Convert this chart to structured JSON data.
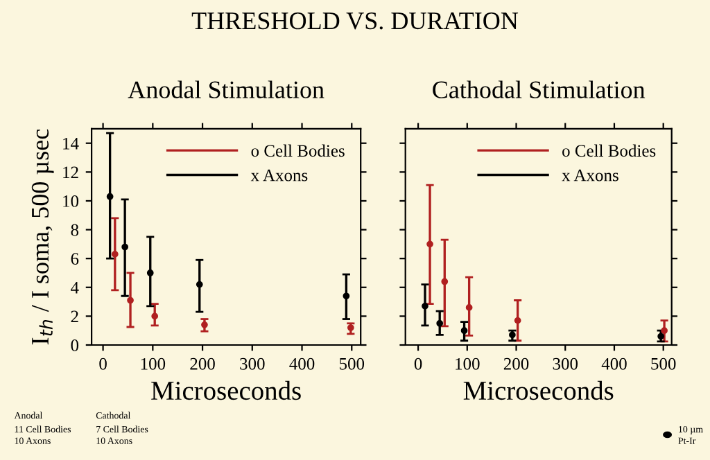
{
  "chart_data": [
    {
      "type": "scatter",
      "title": "Anodal Stimulation",
      "xlabel": "Microseconds",
      "ylabel": "I$_{th}$ / I soma, 500 µsec",
      "marker": "circle",
      "legend": "top right",
      "grid": false,
      "xlim": [
        -23,
        518
      ],
      "xticks": [
        0,
        100,
        200,
        300,
        400,
        500
      ],
      "ylim": [
        0,
        15
      ],
      "yticks": [
        0,
        2,
        4,
        6,
        8,
        10,
        12,
        14
      ],
      "annotations": [
        "THRESHOLD VS. DURATION",
        "Anodal",
        "11 Cell Bodies",
        "10 Axons"
      ],
      "series": [
        {
          "name": "o Cell Bodies",
          "color": "#b02020",
          "x": [
            24,
            55,
            104,
            204,
            498
          ],
          "values": [
            6.3,
            3.1,
            2.0,
            1.4,
            1.2
          ],
          "errors": [
            [
              3.8,
              8.8
            ],
            [
              1.25,
              5.0
            ],
            [
              1.35,
              2.85
            ],
            [
              0.95,
              1.8
            ],
            [
              0.77,
              1.5
            ]
          ]
        },
        {
          "name": "x Axons",
          "color": "#000000",
          "x": [
            14,
            44,
            95,
            194,
            489
          ],
          "values": [
            10.3,
            6.8,
            5.0,
            4.2,
            3.4
          ],
          "errors": [
            [
              6.0,
              14.7
            ],
            [
              3.4,
              10.1
            ],
            [
              2.7,
              7.5
            ],
            [
              2.3,
              5.9
            ],
            [
              1.8,
              4.9
            ]
          ]
        }
      ]
    },
    {
      "type": "scatter",
      "title": "Cathodal Stimulation",
      "xlabel": "Microseconds",
      "marker": "circle",
      "legend": "top right",
      "grid": false,
      "tick_labels": "x",
      "xlim": [
        -26,
        517
      ],
      "xticks": [
        0,
        100,
        200,
        300,
        400,
        500
      ],
      "ylim": [
        0,
        15
      ],
      "yticks": [
        {
          "value": 0,
          "label": null
        },
        {
          "value": 2,
          "label": null
        },
        {
          "value": 4,
          "label": null
        },
        {
          "value": 6,
          "label": null
        },
        {
          "value": 8,
          "label": null
        },
        {
          "value": 10,
          "label": null
        },
        {
          "value": 12,
          "label": null
        },
        {
          "value": 14,
          "label": null
        }
      ],
      "annotations": [
        "Cathodal",
        "7 Cell Bodies",
        "10 Axons",
        "10 µm",
        "Pt-Ir"
      ],
      "series": [
        {
          "name": "o Cell Bodies",
          "color": "#b02020",
          "x": [
            24,
            54,
            104,
            203,
            502
          ],
          "values": [
            7.0,
            4.4,
            2.6,
            1.7,
            1.0
          ],
          "errors": [
            [
              2.85,
              11.1
            ],
            [
              1.3,
              7.3
            ],
            [
              0.65,
              4.7
            ],
            [
              0.3,
              3.1
            ],
            [
              0.25,
              1.7
            ]
          ]
        },
        {
          "name": "x Axons",
          "color": "#000000",
          "x": [
            14,
            44,
            94,
            192,
            495
          ],
          "values": [
            2.7,
            1.5,
            1.0,
            0.7,
            0.6
          ],
          "errors": [
            [
              1.35,
              4.2
            ],
            [
              0.7,
              2.35
            ],
            [
              0.3,
              1.6
            ],
            [
              0.3,
              1.0
            ],
            [
              0.25,
              1.0
            ]
          ]
        }
      ]
    }
  ]
}
